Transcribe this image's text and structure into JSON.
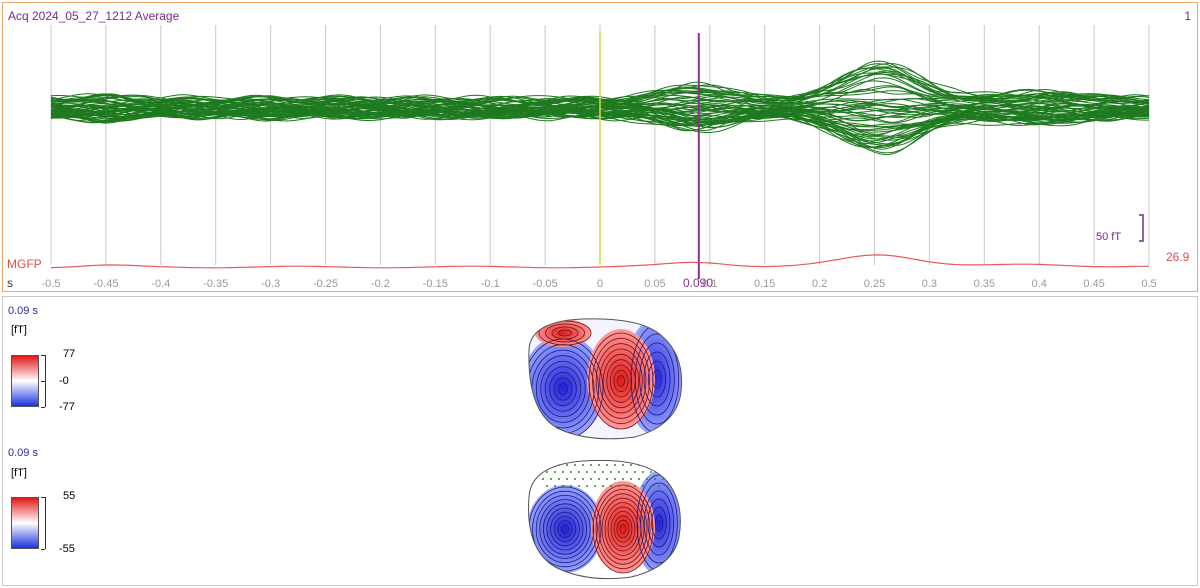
{
  "butterfly": {
    "title": "Acq 2024_05_27_1212 Average",
    "page_number": "1",
    "scale_label": "50 fT",
    "mgfp_label": "MGFP",
    "mgfp_value": "26.9",
    "axis_unit": "s",
    "cursor_label": "0.090",
    "ticks": [
      "-0.5",
      "-0.45",
      "-0.4",
      "-0.35",
      "-0.3",
      "-0.25",
      "-0.2",
      "-0.15",
      "-0.1",
      "-0.05",
      "0",
      "0.05",
      "0.1",
      "0.15",
      "0.2",
      "0.25",
      "0.3",
      "0.35",
      "0.4",
      "0.45",
      "0.5"
    ],
    "colors": {
      "traces": "#1f7a1f",
      "mgfp": "#e85a5a",
      "cursor": "#8b2f8f",
      "zero_line": "#d9d94a",
      "frame": "#f2a66a"
    }
  },
  "topomaps": [
    {
      "time_label": "0.09 s",
      "unit": "[fT]",
      "max": "77",
      "mid": "-0",
      "min": "-77"
    },
    {
      "time_label": "0.09 s",
      "unit": "[fT]",
      "max": "55",
      "min": "-55"
    }
  ]
}
